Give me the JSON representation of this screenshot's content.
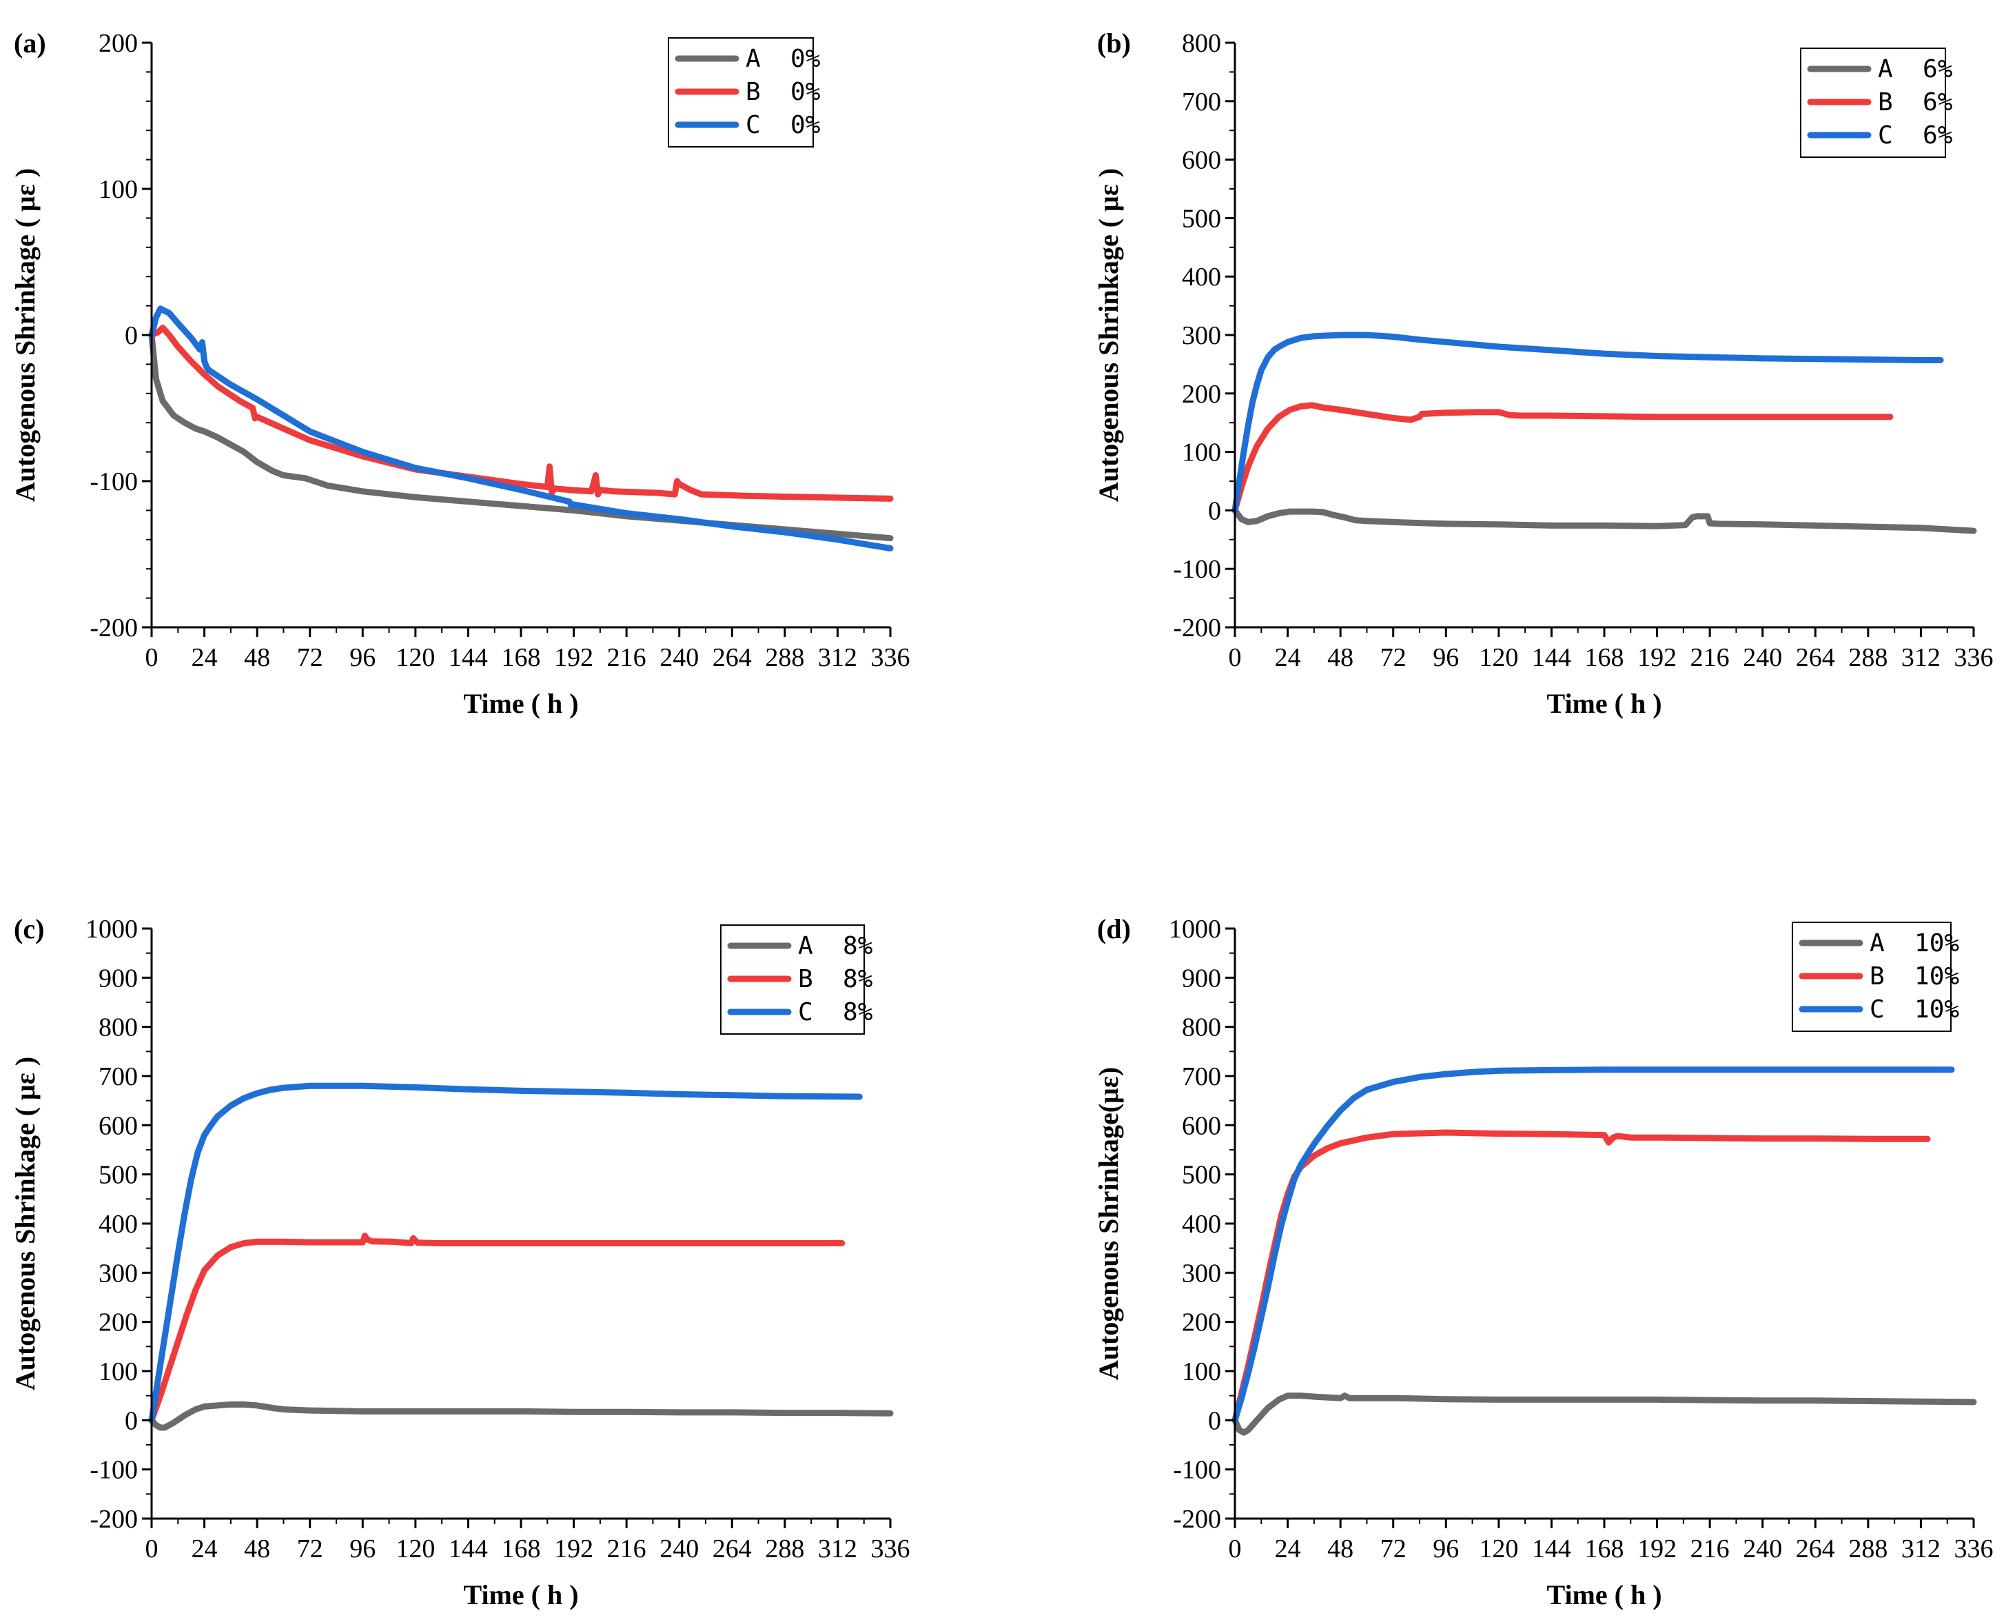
{
  "chart_data": [
    {
      "type": "line",
      "panel_label": "(a)",
      "xlabel": "Time ( h )",
      "ylabel": "Autogenous Shrinkage ( με )",
      "xlim": [
        0,
        336
      ],
      "ylim": [
        -200,
        200
      ],
      "xticks": [
        0,
        24,
        48,
        72,
        96,
        120,
        144,
        168,
        192,
        216,
        240,
        264,
        288,
        312,
        336
      ],
      "yticks": [
        -200,
        -100,
        0,
        100,
        200
      ],
      "legend_position": "top-right",
      "series": [
        {
          "name": "A  0%",
          "color": "#6b6b6b",
          "x": [
            0,
            2,
            5,
            10,
            15,
            20,
            24,
            30,
            36,
            42,
            48,
            55,
            60,
            70,
            72,
            80,
            96,
            120,
            144,
            168,
            192,
            216,
            240,
            264,
            288,
            312,
            336
          ],
          "y": [
            0,
            -30,
            -45,
            -55,
            -60,
            -64,
            -66,
            -70,
            -75,
            -80,
            -87,
            -93,
            -96,
            -98,
            -99,
            -103,
            -107,
            -111,
            -114,
            -117,
            -120,
            -124,
            -127,
            -130,
            -133,
            -136,
            -139
          ]
        },
        {
          "name": "B  0%",
          "color": "#ef3b3b",
          "x": [
            0,
            3,
            5,
            8,
            12,
            18,
            24,
            30,
            40,
            46,
            47,
            48,
            60,
            72,
            96,
            120,
            144,
            168,
            180,
            181,
            182,
            183,
            190,
            200,
            202,
            203,
            204,
            210,
            230,
            238,
            239,
            240,
            245,
            250,
            270,
            300,
            336
          ],
          "y": [
            0,
            2,
            5,
            0,
            -8,
            -18,
            -27,
            -35,
            -45,
            -50,
            -57,
            -56,
            -64,
            -72,
            -83,
            -92,
            -97,
            -102,
            -104,
            -90,
            -108,
            -105,
            -106,
            -107,
            -96,
            -109,
            -106,
            -107,
            -108,
            -109,
            -100,
            -102,
            -106,
            -109,
            -110,
            -111,
            -112
          ]
        },
        {
          "name": "C  0%",
          "color": "#1f6fd6",
          "x": [
            0,
            2,
            4,
            8,
            12,
            18,
            22,
            23,
            24,
            25,
            26,
            30,
            36,
            48,
            60,
            72,
            96,
            120,
            144,
            168,
            190,
            191,
            192,
            216,
            240,
            264,
            288,
            312,
            336
          ],
          "y": [
            0,
            12,
            18,
            15,
            8,
            -2,
            -10,
            -5,
            -18,
            -22,
            -24,
            -28,
            -34,
            -44,
            -55,
            -66,
            -80,
            -91,
            -98,
            -106,
            -114,
            -117,
            -116,
            -122,
            -126,
            -131,
            -135,
            -140,
            -146
          ]
        }
      ]
    },
    {
      "type": "line",
      "panel_label": "(b)",
      "xlabel": "Time ( h )",
      "ylabel": "Autogenous Shrinkage ( με )",
      "xlim": [
        0,
        336
      ],
      "ylim": [
        -200,
        800
      ],
      "xticks": [
        0,
        24,
        48,
        72,
        96,
        120,
        144,
        168,
        192,
        216,
        240,
        264,
        288,
        312,
        336
      ],
      "yticks": [
        -200,
        -100,
        0,
        100,
        200,
        300,
        400,
        500,
        600,
        700,
        800
      ],
      "legend_position": "top-right",
      "series": [
        {
          "name": "A  6%",
          "color": "#6b6b6b",
          "x": [
            0,
            3,
            6,
            10,
            15,
            20,
            25,
            30,
            35,
            40,
            45,
            50,
            55,
            60,
            72,
            96,
            120,
            144,
            168,
            192,
            205,
            208,
            210,
            215,
            216,
            220,
            240,
            264,
            288,
            312,
            336
          ],
          "y": [
            0,
            -15,
            -20,
            -18,
            -10,
            -5,
            -2,
            -2,
            -2,
            -3,
            -8,
            -12,
            -17,
            -18,
            -20,
            -23,
            -24,
            -26,
            -26,
            -27,
            -25,
            -12,
            -10,
            -10,
            -22,
            -23,
            -24,
            -26,
            -28,
            -30,
            -35
          ]
        },
        {
          "name": "B  6%",
          "color": "#ef3b3b",
          "x": [
            0,
            3,
            6,
            10,
            15,
            20,
            25,
            30,
            35,
            40,
            48,
            60,
            72,
            80,
            84,
            85,
            96,
            110,
            120,
            125,
            130,
            144,
            168,
            192,
            216,
            240,
            264,
            288,
            298
          ],
          "y": [
            0,
            40,
            75,
            110,
            140,
            160,
            172,
            178,
            180,
            176,
            172,
            165,
            158,
            155,
            160,
            165,
            167,
            168,
            168,
            163,
            162,
            162,
            161,
            160,
            160,
            160,
            160,
            160,
            160
          ]
        },
        {
          "name": "C  6%",
          "color": "#1f6fd6",
          "x": [
            0,
            2,
            4,
            6,
            8,
            10,
            12,
            15,
            18,
            21,
            24,
            30,
            36,
            48,
            60,
            72,
            84,
            96,
            120,
            144,
            168,
            192,
            216,
            240,
            264,
            288,
            312,
            321
          ],
          "y": [
            0,
            50,
            100,
            145,
            185,
            215,
            240,
            262,
            275,
            282,
            288,
            295,
            298,
            300,
            300,
            297,
            292,
            288,
            280,
            274,
            268,
            264,
            262,
            260,
            259,
            258,
            257,
            257
          ]
        }
      ]
    },
    {
      "type": "line",
      "panel_label": "(c)",
      "xlabel": "Time ( h )",
      "ylabel": "Autogenous Shrinkage ( με )",
      "xlim": [
        0,
        336
      ],
      "ylim": [
        -200,
        1000
      ],
      "xticks": [
        0,
        24,
        48,
        72,
        96,
        120,
        144,
        168,
        192,
        216,
        240,
        264,
        288,
        312,
        336
      ],
      "yticks": [
        -200,
        -100,
        0,
        100,
        200,
        300,
        400,
        500,
        600,
        700,
        800,
        900,
        1000
      ],
      "legend_position": "top-right",
      "series": [
        {
          "name": "A  8%",
          "color": "#6b6b6b",
          "x": [
            0,
            2,
            4,
            6,
            10,
            15,
            20,
            24,
            30,
            36,
            42,
            48,
            55,
            60,
            72,
            96,
            120,
            144,
            168,
            192,
            216,
            240,
            264,
            288,
            312,
            336
          ],
          "y": [
            0,
            -10,
            -15,
            -15,
            -5,
            10,
            22,
            28,
            30,
            32,
            32,
            30,
            25,
            22,
            20,
            18,
            18,
            18,
            18,
            17,
            17,
            16,
            16,
            15,
            15,
            14
          ]
        },
        {
          "name": "B  8%",
          "color": "#ef3b3b",
          "x": [
            0,
            4,
            8,
            12,
            16,
            20,
            24,
            30,
            36,
            42,
            48,
            60,
            72,
            84,
            96,
            97,
            98,
            100,
            110,
            118,
            119,
            120,
            121,
            130,
            144,
            168,
            192,
            216,
            240,
            264,
            288,
            314
          ],
          "y": [
            0,
            50,
            105,
            160,
            215,
            265,
            305,
            335,
            352,
            360,
            363,
            363,
            362,
            362,
            362,
            375,
            368,
            364,
            363,
            360,
            370,
            365,
            361,
            360,
            360,
            360,
            360,
            360,
            360,
            360,
            360,
            360
          ]
        },
        {
          "name": "C  8%",
          "color": "#1f6fd6",
          "x": [
            0,
            3,
            6,
            9,
            12,
            15,
            18,
            21,
            24,
            27,
            30,
            36,
            42,
            48,
            54,
            60,
            72,
            84,
            96,
            120,
            144,
            168,
            192,
            216,
            240,
            264,
            288,
            322
          ],
          "y": [
            0,
            85,
            170,
            255,
            340,
            420,
            490,
            545,
            580,
            600,
            618,
            640,
            655,
            665,
            672,
            676,
            680,
            680,
            680,
            677,
            673,
            670,
            668,
            666,
            663,
            661,
            659,
            658
          ]
        }
      ]
    },
    {
      "type": "line",
      "panel_label": "(d)",
      "xlabel": "Time ( h )",
      "ylabel": "Autogenous Shrinkage(με)",
      "xlim": [
        0,
        336
      ],
      "ylim": [
        -200,
        1000
      ],
      "xticks": [
        0,
        24,
        48,
        72,
        96,
        120,
        144,
        168,
        192,
        216,
        240,
        264,
        288,
        312,
        336
      ],
      "yticks": [
        -200,
        -100,
        0,
        100,
        200,
        300,
        400,
        500,
        600,
        700,
        800,
        900,
        1000
      ],
      "legend_position": "top-right",
      "series": [
        {
          "name": "A  10%",
          "color": "#6b6b6b",
          "x": [
            0,
            2,
            4,
            6,
            10,
            15,
            20,
            24,
            30,
            36,
            48,
            50,
            52,
            60,
            72,
            96,
            120,
            144,
            168,
            192,
            216,
            240,
            264,
            288,
            312,
            336
          ],
          "y": [
            0,
            -20,
            -25,
            -20,
            0,
            25,
            42,
            50,
            50,
            48,
            45,
            50,
            45,
            45,
            45,
            43,
            42,
            42,
            42,
            42,
            41,
            40,
            40,
            39,
            38,
            37
          ]
        },
        {
          "name": "B  10%",
          "color": "#ef3b3b",
          "x": [
            0,
            3,
            6,
            9,
            12,
            15,
            18,
            21,
            24,
            27,
            30,
            36,
            42,
            48,
            60,
            72,
            96,
            120,
            144,
            168,
            170,
            172,
            174,
            180,
            192,
            216,
            240,
            264,
            288,
            315
          ],
          "y": [
            0,
            55,
            110,
            170,
            230,
            295,
            355,
            415,
            460,
            495,
            515,
            538,
            553,
            563,
            575,
            582,
            585,
            583,
            582,
            580,
            565,
            575,
            578,
            575,
            575,
            574,
            573,
            573,
            572,
            572
          ]
        },
        {
          "name": "C  10%",
          "color": "#1f6fd6",
          "x": [
            0,
            3,
            6,
            9,
            12,
            15,
            18,
            21,
            24,
            27,
            30,
            36,
            42,
            48,
            54,
            60,
            72,
            84,
            96,
            108,
            120,
            144,
            168,
            192,
            216,
            240,
            264,
            288,
            312,
            326
          ],
          "y": [
            0,
            45,
            95,
            150,
            210,
            270,
            335,
            395,
            445,
            490,
            520,
            562,
            598,
            630,
            655,
            672,
            688,
            698,
            704,
            708,
            711,
            712,
            713,
            713,
            713,
            713,
            713,
            713,
            713,
            713
          ]
        }
      ]
    }
  ]
}
